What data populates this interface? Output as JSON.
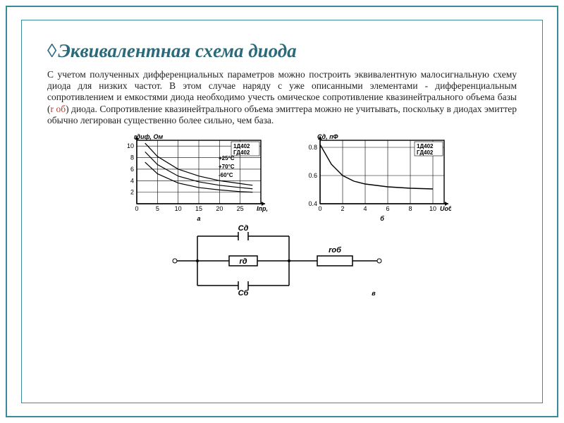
{
  "title_prefix": "◊",
  "title": "Эквивалентная схема диода",
  "paragraph_pre": "С учетом полученных дифференциальных параметров можно построить эквивалентную малосигнальную схему диода для низких частот. В этом случае наряду с уже описанными элементами - дифференциальным сопротивлением и емкостями диода необходимо учесть омическое сопротивление квазинейтрального объема базы (",
  "rob_symbol": "r об",
  "paragraph_post": ") диода. Сопротивление квазинейтрального объема эмиттера можно не учитывать, поскольку в диодах эмиттер обычно легирован существенно более сильно, чем база.",
  "chart_a": {
    "type": "line",
    "ylabel": "r_диф, Oм",
    "xlabel": "I_пр, мА",
    "sublabel": "а",
    "xlim": [
      0,
      30
    ],
    "ylim": [
      0,
      11
    ],
    "xticks": [
      0,
      5,
      10,
      15,
      20,
      25
    ],
    "yticks": [
      2,
      4,
      6,
      8,
      10
    ],
    "legend": [
      "1Д402",
      "ГД402"
    ],
    "temp_labels": [
      "+25°C",
      "+70°C",
      "-60°C"
    ],
    "grid_color": "#000000",
    "bg": "#ffffff",
    "curves": [
      {
        "pts": [
          [
            2,
            10.5
          ],
          [
            5,
            8.2
          ],
          [
            10,
            6.0
          ],
          [
            15,
            4.8
          ],
          [
            20,
            4.0
          ],
          [
            25,
            3.5
          ],
          [
            28,
            3.2
          ]
        ],
        "w": 1.2
      },
      {
        "pts": [
          [
            2,
            9.0
          ],
          [
            5,
            6.8
          ],
          [
            10,
            4.8
          ],
          [
            15,
            3.8
          ],
          [
            20,
            3.2
          ],
          [
            25,
            2.8
          ],
          [
            28,
            2.6
          ]
        ],
        "w": 1.2
      },
      {
        "pts": [
          [
            2,
            7.2
          ],
          [
            5,
            5.2
          ],
          [
            10,
            3.6
          ],
          [
            15,
            2.8
          ],
          [
            20,
            2.4
          ],
          [
            25,
            2.1
          ],
          [
            28,
            2.0
          ]
        ],
        "w": 1.2
      }
    ]
  },
  "chart_b": {
    "type": "line",
    "ylabel": "C_д, пФ",
    "xlabel": "U_обр, В",
    "sublabel": "б",
    "xlim": [
      0,
      11
    ],
    "ylim": [
      0.4,
      0.85
    ],
    "xticks": [
      0,
      2,
      4,
      6,
      8,
      10
    ],
    "yticks": [
      0.4,
      0.6,
      0.8
    ],
    "legend": [
      "1Д402",
      "ГД402"
    ],
    "grid_color": "#000000",
    "bg": "#ffffff",
    "curves": [
      {
        "pts": [
          [
            0,
            0.82
          ],
          [
            1,
            0.68
          ],
          [
            2,
            0.6
          ],
          [
            3,
            0.56
          ],
          [
            4,
            0.54
          ],
          [
            6,
            0.52
          ],
          [
            8,
            0.51
          ],
          [
            10,
            0.505
          ]
        ],
        "w": 1.4
      }
    ]
  },
  "circuit": {
    "sublabel": "в",
    "labels": {
      "cd": "C_д",
      "cb": "C_б",
      "rd": "r_д",
      "rob": "r_об"
    },
    "stroke": "#000000",
    "line_w": 1.5
  }
}
